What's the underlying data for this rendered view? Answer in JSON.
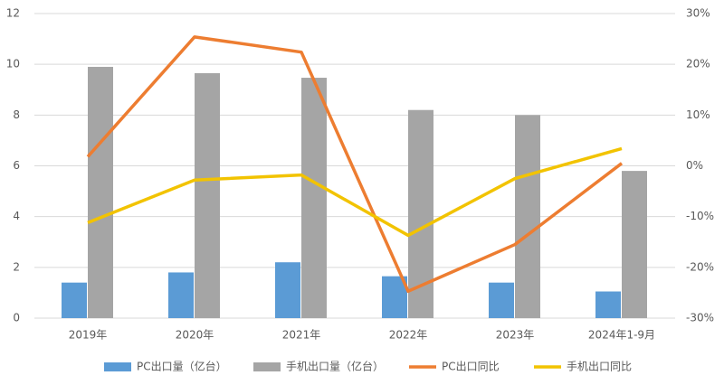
{
  "chart_data": {
    "type": "combo",
    "categories": [
      "2019年",
      "2020年",
      "2021年",
      "2022年",
      "2023年",
      "2024年1-9月"
    ],
    "series": [
      {
        "name": "PC出口量（亿台）",
        "type": "bar",
        "color": "#5b9bd5",
        "values": [
          1.4,
          1.8,
          2.2,
          1.65,
          1.4,
          1.05
        ]
      },
      {
        "name": "手机出口量（亿台）",
        "type": "bar",
        "color": "#a5a5a5",
        "values": [
          9.9,
          9.65,
          9.47,
          8.2,
          8.0,
          5.8
        ]
      },
      {
        "name": "PC出口同比",
        "type": "line",
        "axis": "y2",
        "color": "#ed7d31",
        "values": [
          1.8,
          25.4,
          22.4,
          -24.7,
          -15.5,
          0.5
        ]
      },
      {
        "name": "手机出口同比",
        "type": "line",
        "axis": "y2",
        "color": "#f2c300",
        "values": [
          -11.2,
          -2.8,
          -1.8,
          -13.7,
          -2.5,
          3.4
        ]
      }
    ],
    "ylim": [
      0,
      12
    ],
    "yticks": [
      0,
      2,
      4,
      6,
      8,
      10,
      12
    ],
    "y2lim": [
      -30,
      30
    ],
    "y2ticks": [
      {
        "value": -30,
        "label": "-30%"
      },
      {
        "value": -20,
        "label": "-20%"
      },
      {
        "value": -10,
        "label": "-10%"
      },
      {
        "value": 0,
        "label": "0%"
      },
      {
        "value": 10,
        "label": "10%"
      },
      {
        "value": 20,
        "label": "20%"
      },
      {
        "value": 30,
        "label": "30%"
      }
    ],
    "grid": true
  }
}
